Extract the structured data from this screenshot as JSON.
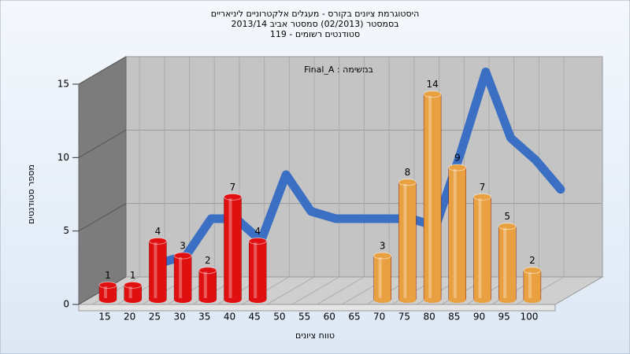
{
  "chart_data": {
    "type": "bar",
    "title": [
      "היסטוגרמת ציונים בקורס - מעגלים אלקטרוניים ליניאריים",
      "בסמסטר  (02/2013)  סמסטר אביב 2013/14",
      "סטודנטים רשומים - 119"
    ],
    "annotation": "Final_A : במשימה",
    "x_label": "טווח ציונים",
    "y_label": "מספר סטודנטים",
    "categories": [
      "15",
      "20",
      "25",
      "30",
      "35",
      "40",
      "45",
      "50",
      "55",
      "60",
      "65",
      "70",
      "75",
      "80",
      "85",
      "90",
      "95",
      "100"
    ],
    "series": [
      {
        "values": [
          1,
          1,
          4,
          3,
          2,
          7,
          4,
          0,
          0,
          0,
          0,
          3,
          8,
          14,
          9,
          7,
          5,
          2
        ],
        "colors": [
          "#e01010",
          "#e01010",
          "#e01010",
          "#e01010",
          "#e01010",
          "#e01010",
          "#e01010",
          "#e01010",
          "#e01010",
          "#e01010",
          "#e01010",
          "#e8a040",
          "#e8a040",
          "#e8a040",
          "#e8a040",
          "#e8a040",
          "#e8a040",
          "#e8a040"
        ]
      }
    ],
    "curve": {
      "color": "#3a6fc4",
      "values": [
        null,
        1.5,
        2,
        4.5,
        4.5,
        3,
        7.5,
        5,
        4.5,
        4.5,
        4.5,
        4.5,
        4,
        9,
        14.5,
        10,
        8.5,
        6.5
      ]
    },
    "ylim": [
      0,
      15
    ],
    "yticks": [
      0,
      5,
      10,
      15
    ],
    "grid": true
  }
}
